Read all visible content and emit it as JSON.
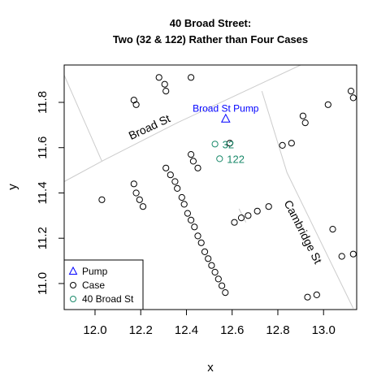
{
  "chart_data": {
    "type": "scatter",
    "title_line1": "40 Broad Street:",
    "title_line2": "Two (32 & 122) Rather than Four Cases",
    "xlabel": "x",
    "ylabel": "y",
    "xlim": [
      11.865,
      13.145
    ],
    "ylim": [
      10.885,
      11.965
    ],
    "xticks": [
      {
        "value": 12.0,
        "label": "12.0"
      },
      {
        "value": 12.2,
        "label": "12.2"
      },
      {
        "value": 12.4,
        "label": "12.4"
      },
      {
        "value": 12.6,
        "label": "12.6"
      },
      {
        "value": 12.8,
        "label": "12.8"
      },
      {
        "value": 13.0,
        "label": "13.0"
      }
    ],
    "yticks": [
      {
        "value": 11.0,
        "label": "11.0"
      },
      {
        "value": 11.2,
        "label": "11.2"
      },
      {
        "value": 11.4,
        "label": "11.4"
      },
      {
        "value": 11.6,
        "label": "11.6"
      },
      {
        "value": 11.8,
        "label": "11.8"
      }
    ],
    "colors": {
      "pump": "#0000ff",
      "case": "#000000",
      "broad_st_40": "#1b8a6b",
      "road": "#cccccc"
    },
    "roads": [
      [
        [
          11.865,
          11.45
        ],
        [
          12.03,
          11.54
        ],
        [
          12.36,
          11.71
        ],
        [
          12.72,
          11.88
        ],
        [
          12.9,
          11.965
        ]
      ],
      [
        [
          11.865,
          11.92
        ],
        [
          12.03,
          11.54
        ]
      ],
      [
        [
          12.73,
          11.85
        ],
        [
          12.84,
          11.49
        ],
        [
          13.13,
          10.89
        ]
      ],
      [
        [
          12.63,
          11.33
        ],
        [
          12.66,
          11.27
        ]
      ]
    ],
    "streets": [
      {
        "name": "Broad St",
        "x": 12.245,
        "y": 11.675,
        "angle": -25
      },
      {
        "name": "Cambridge St",
        "x": 12.895,
        "y": 11.22,
        "angle": 63
      }
    ],
    "pump": {
      "name": "Broad St Pump",
      "x": 12.572,
      "y": 11.727
    },
    "broad_st_40": [
      {
        "label": "32",
        "x": 12.525,
        "y": 11.616
      },
      {
        "label": "122",
        "x": 12.545,
        "y": 11.551
      }
    ],
    "cases": [
      [
        12.28,
        11.91
      ],
      [
        12.305,
        11.88
      ],
      [
        12.31,
        11.85
      ],
      [
        12.42,
        11.91
      ],
      [
        12.17,
        11.81
      ],
      [
        12.18,
        11.79
      ],
      [
        12.31,
        11.51
      ],
      [
        12.33,
        11.48
      ],
      [
        12.35,
        11.45
      ],
      [
        12.36,
        11.42
      ],
      [
        12.38,
        11.38
      ],
      [
        12.39,
        11.35
      ],
      [
        12.405,
        11.31
      ],
      [
        12.42,
        11.28
      ],
      [
        12.435,
        11.25
      ],
      [
        12.45,
        11.21
      ],
      [
        12.465,
        11.18
      ],
      [
        12.48,
        11.14
      ],
      [
        12.495,
        11.11
      ],
      [
        12.51,
        11.08
      ],
      [
        12.525,
        11.05
      ],
      [
        12.54,
        11.02
      ],
      [
        12.555,
        10.99
      ],
      [
        12.57,
        10.96
      ],
      [
        12.42,
        11.57
      ],
      [
        12.43,
        11.54
      ],
      [
        12.45,
        11.51
      ],
      [
        12.59,
        11.62
      ],
      [
        12.17,
        11.44
      ],
      [
        12.18,
        11.4
      ],
      [
        12.195,
        11.37
      ],
      [
        12.21,
        11.34
      ],
      [
        12.03,
        11.37
      ],
      [
        12.61,
        11.27
      ],
      [
        12.64,
        11.29
      ],
      [
        12.67,
        11.3
      ],
      [
        12.71,
        11.32
      ],
      [
        12.76,
        11.34
      ],
      [
        12.82,
        11.61
      ],
      [
        12.86,
        11.62
      ],
      [
        12.91,
        11.74
      ],
      [
        12.92,
        11.71
      ],
      [
        13.02,
        11.79
      ],
      [
        13.12,
        11.85
      ],
      [
        13.13,
        11.82
      ],
      [
        13.04,
        11.24
      ],
      [
        13.08,
        11.12
      ],
      [
        13.13,
        11.13
      ],
      [
        12.93,
        10.94
      ],
      [
        12.97,
        10.95
      ]
    ],
    "legend": {
      "position": "bottom-left",
      "entries": [
        {
          "label": "Pump",
          "symbol": "triangle",
          "color_key": "pump"
        },
        {
          "label": "Case",
          "symbol": "circle",
          "color_key": "case"
        },
        {
          "label": "40 Broad St",
          "symbol": "circle",
          "color_key": "broad_st_40"
        }
      ]
    }
  }
}
